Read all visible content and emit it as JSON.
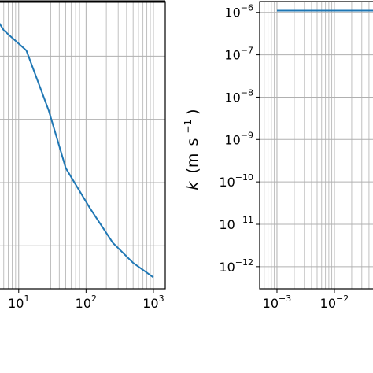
{
  "chart_data": [
    {
      "type": "line",
      "title": "",
      "xlabel": "",
      "ylabel": "",
      "x_scale": "log",
      "y_scale": "linear",
      "xlim": [
        5,
        1500
      ],
      "ylim": [
        0,
        1
      ],
      "x_tick_labels": [
        "10",
        "10",
        "10"
      ],
      "x_tick_exponents": [
        "1",
        "2",
        "3"
      ],
      "x_tick_values": [
        10,
        100,
        1000
      ],
      "y_tick_labels": [],
      "grid": true,
      "legend": "none",
      "series": [
        {
          "color": "#1f77b4",
          "x": [
            5,
            6,
            13,
            28,
            50,
            115,
            250,
            500,
            1000
          ],
          "y": [
            0.93,
            0.9,
            0.83,
            0.62,
            0.42,
            0.28,
            0.16,
            0.09,
            0.04
          ]
        }
      ]
    },
    {
      "type": "line",
      "title": "",
      "xlabel": "",
      "ylabel": "k (m s⁻¹)",
      "ylabel_parts": {
        "base": "k",
        "paren_open": "(m",
        "unit_s": "s",
        "exp": "−1",
        "paren_close": ")"
      },
      "x_scale": "log",
      "y_scale": "log",
      "xlim": [
        0.0005,
        0.05
      ],
      "ylim": [
        3e-13,
        1.8e-06
      ],
      "x_tick_labels": [
        "10",
        "10"
      ],
      "x_tick_exponents": [
        "−3",
        "−2"
      ],
      "x_tick_values": [
        0.001,
        0.01
      ],
      "y_tick_labels": [
        "10",
        "10",
        "10",
        "10",
        "10",
        "10",
        "10"
      ],
      "y_tick_exponents": [
        "−6",
        "−7",
        "−8",
        "−9",
        "−10",
        "−11",
        "−12"
      ],
      "y_tick_values": [
        1e-06,
        1e-07,
        1e-08,
        1e-09,
        1e-10,
        1e-11,
        1e-12
      ],
      "grid": true,
      "legend": "none",
      "series": [
        {
          "color": "#1f77b4",
          "x": [
            0.001,
            0.05
          ],
          "y": [
            1.1e-06,
            1.1e-06
          ]
        }
      ]
    }
  ]
}
